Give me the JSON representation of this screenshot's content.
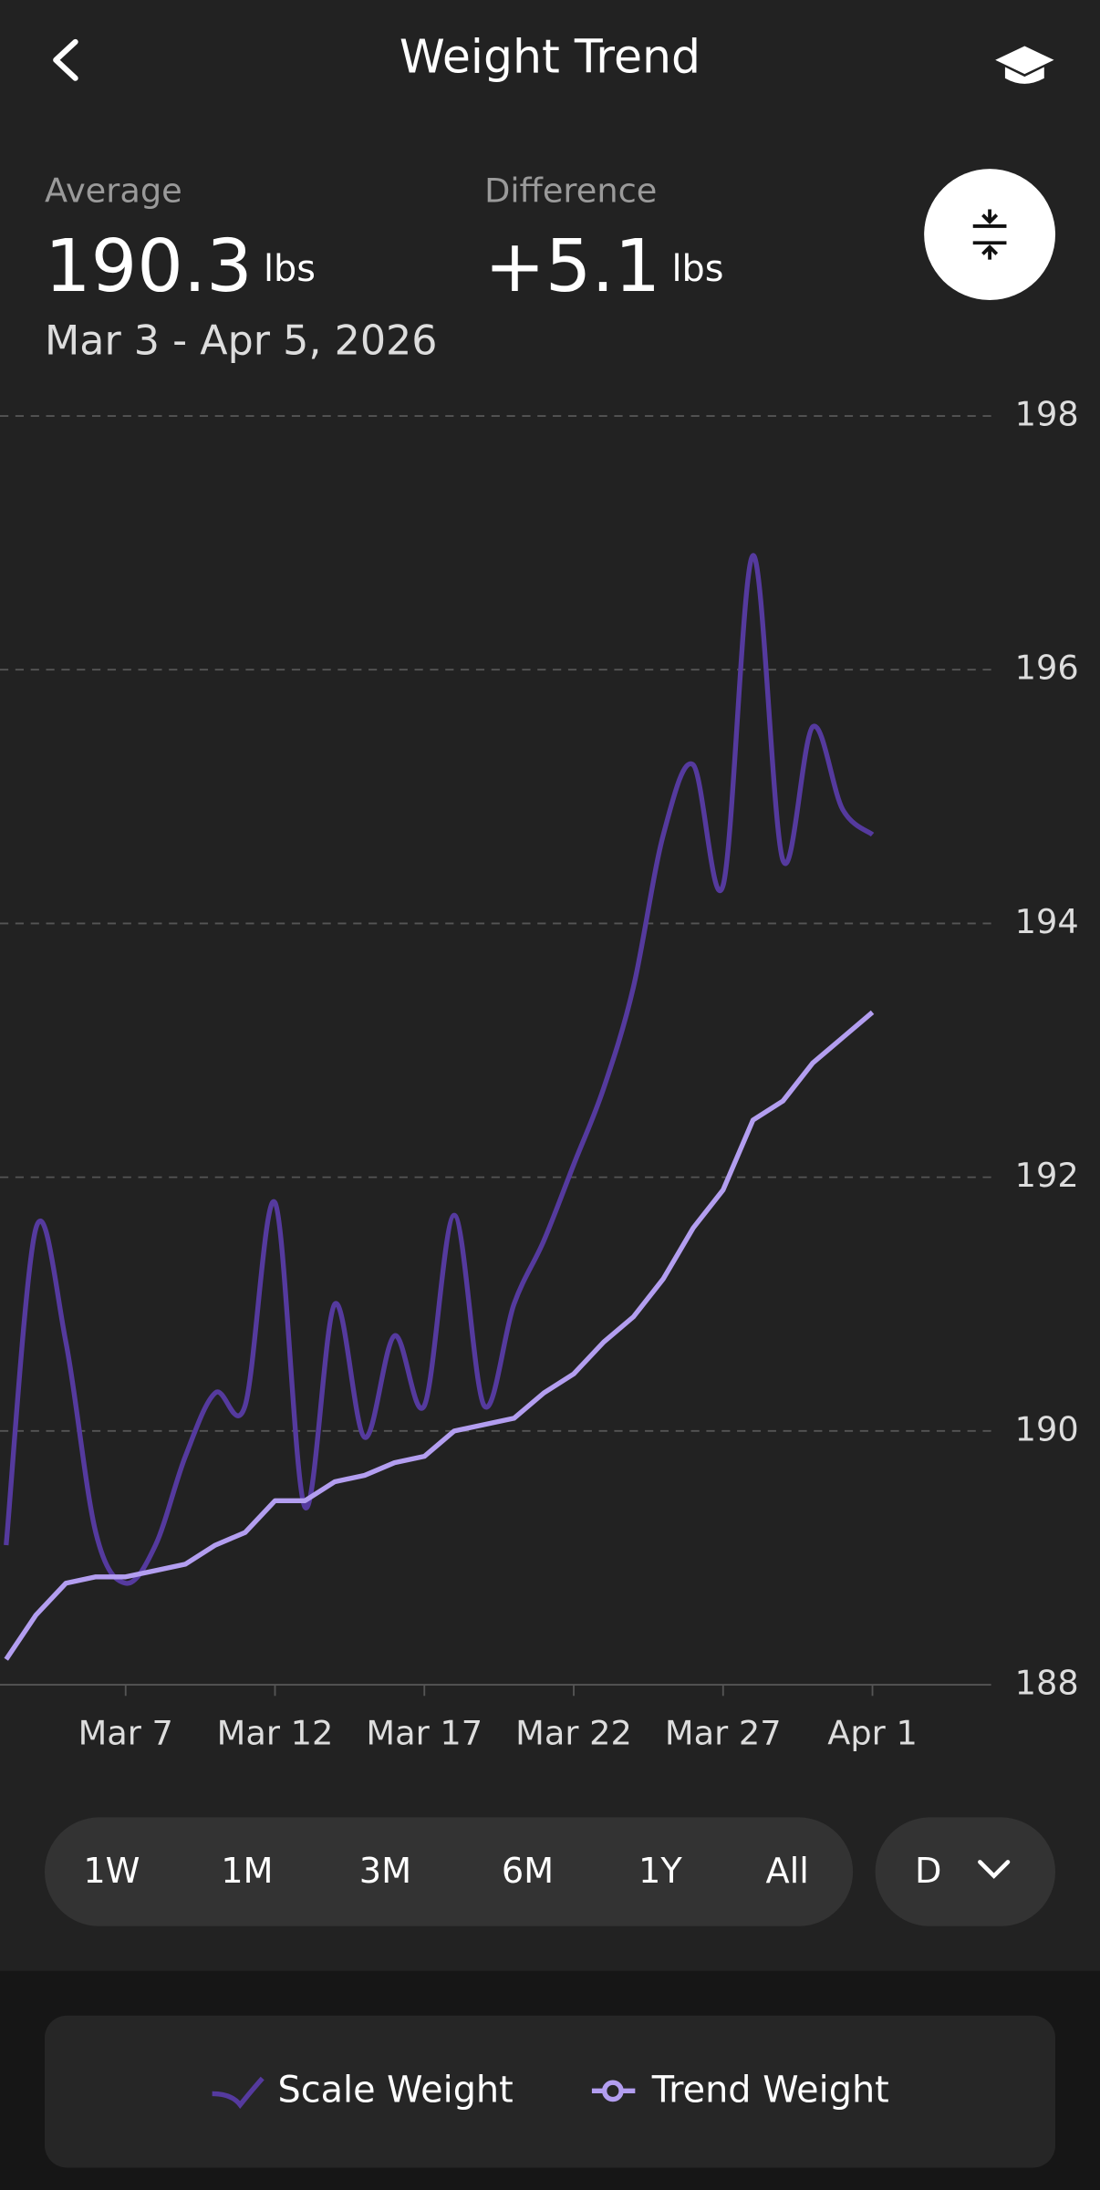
{
  "header": {
    "title": "Weight Trend"
  },
  "summary": {
    "average_label": "Average",
    "average_value": "190.3",
    "average_unit": "lbs",
    "date_range": "Mar 3 - Apr 5, 2026",
    "difference_label": "Difference",
    "difference_value": "+5.1",
    "difference_unit": "lbs"
  },
  "range_buttons": [
    "1W",
    "1M",
    "3M",
    "6M",
    "1Y",
    "All"
  ],
  "granularity": "D",
  "chart_data": {
    "type": "line",
    "x": [
      "Mar 3",
      "Mar 4",
      "Mar 5",
      "Mar 6",
      "Mar 7",
      "Mar 8",
      "Mar 9",
      "Mar 10",
      "Mar 11",
      "Mar 12",
      "Mar 13",
      "Mar 14",
      "Mar 15",
      "Mar 16",
      "Mar 17",
      "Mar 18",
      "Mar 19",
      "Mar 20",
      "Mar 21",
      "Mar 22",
      "Mar 23",
      "Mar 24",
      "Mar 25",
      "Mar 26",
      "Mar 27",
      "Mar 28",
      "Mar 29",
      "Mar 30",
      "Mar 31",
      "Apr 1"
    ],
    "series": [
      {
        "name": "Scale Weight",
        "color": "#553a9e",
        "values": [
          189.1,
          191.6,
          190.7,
          189.2,
          188.8,
          189.1,
          189.8,
          190.3,
          190.2,
          191.8,
          189.4,
          191.0,
          189.95,
          190.75,
          190.2,
          191.7,
          190.2,
          191.0,
          191.5,
          192.1,
          192.7,
          193.5,
          194.7,
          195.25,
          194.3,
          196.9,
          194.5,
          195.55,
          194.9,
          194.7
        ]
      },
      {
        "name": "Trend Weight",
        "color": "#b39ef0",
        "values": [
          188.2,
          188.55,
          188.8,
          188.85,
          188.85,
          188.9,
          188.95,
          189.1,
          189.2,
          189.45,
          189.45,
          189.6,
          189.65,
          189.75,
          189.8,
          190.0,
          190.05,
          190.1,
          190.3,
          190.45,
          190.7,
          190.9,
          191.2,
          191.6,
          191.9,
          192.45,
          192.6,
          192.9,
          193.1,
          193.3
        ]
      }
    ],
    "xticks": [
      "Mar 7",
      "Mar 12",
      "Mar 17",
      "Mar 22",
      "Mar 27",
      "Apr 1"
    ],
    "ylim": [
      188,
      198
    ],
    "yticks": [
      188,
      190,
      192,
      194,
      196,
      198
    ],
    "grid": true
  }
}
